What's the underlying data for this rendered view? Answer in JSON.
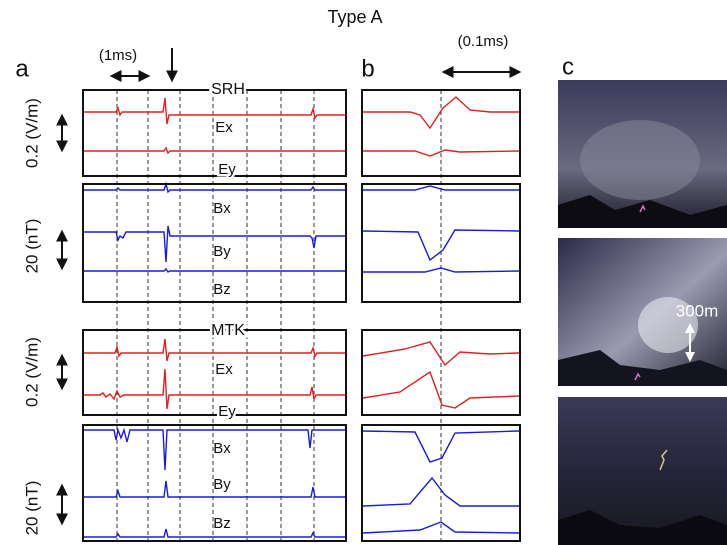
{
  "title": "Type A",
  "panels": {
    "a": {
      "label": "a",
      "time_scale": "(1ms)",
      "stations": [
        {
          "name": "SRH",
          "electric_scale": "0.2 (V/m)",
          "electric": [
            "Ex",
            "Ey"
          ],
          "magnetic_scale": "20 (nT)",
          "magnetic": [
            "Bx",
            "By",
            "Bz"
          ]
        },
        {
          "name": "MTK",
          "electric_scale": "0.2 (V/m)",
          "electric": [
            "Ex",
            "Ey"
          ],
          "magnetic_scale": "20 (nT)",
          "magnetic": [
            "Bx",
            "By",
            "Bz"
          ]
        }
      ]
    },
    "b": {
      "label": "b",
      "time_scale": "(0.1ms)"
    },
    "c": {
      "label": "c",
      "distance_scale": "300m"
    }
  }
}
